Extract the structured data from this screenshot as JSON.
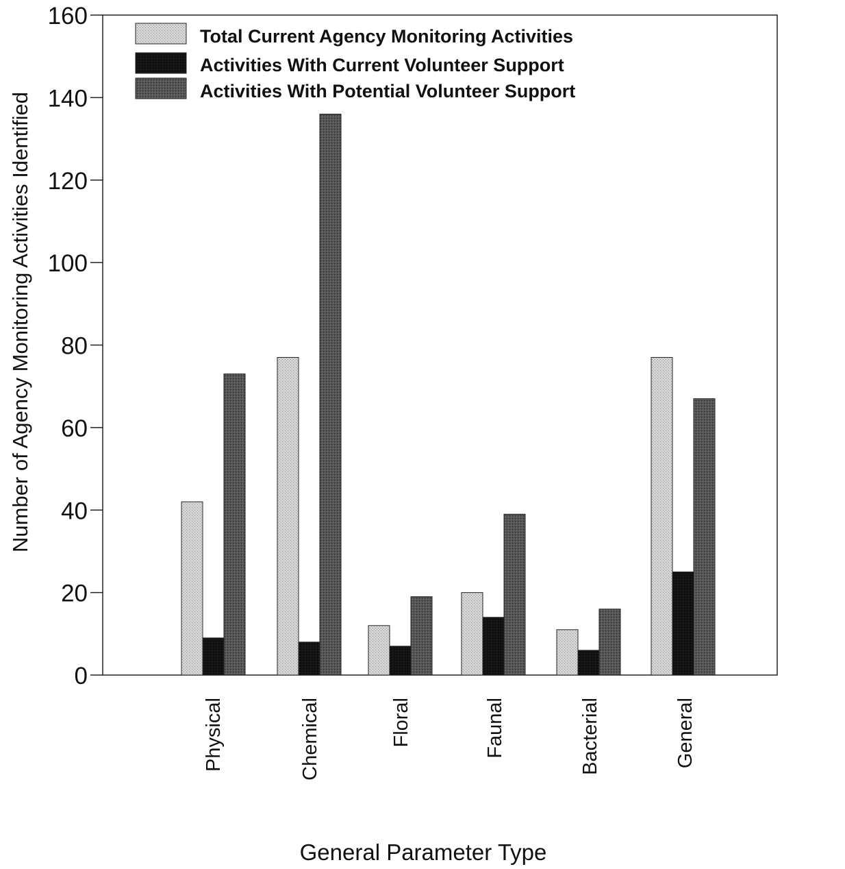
{
  "chart_data": {
    "type": "bar",
    "title": "",
    "xlabel": "General Parameter Type",
    "ylabel": "Number of Agency Monitoring Activities Identified",
    "ylim": [
      0,
      160
    ],
    "yticks": [
      0,
      20,
      40,
      60,
      80,
      100,
      120,
      140,
      160
    ],
    "grid": false,
    "legend_position": "top-left",
    "categories": [
      "Physical",
      "Chemical",
      "Floral",
      "Faunal",
      "Bacterial",
      "General"
    ],
    "series": [
      {
        "name": "Total Current Agency Monitoring Activities",
        "values": [
          42,
          77,
          12,
          20,
          11,
          77
        ],
        "color": "#c6c6c6"
      },
      {
        "name": "Activities With Current Volunteer Support",
        "values": [
          9,
          8,
          7,
          14,
          6,
          25
        ],
        "color": "#1a1a1a"
      },
      {
        "name": "Activities With Potential Volunteer Support",
        "values": [
          73,
          136,
          19,
          39,
          16,
          67
        ],
        "color": "#4a4a4a"
      }
    ]
  }
}
